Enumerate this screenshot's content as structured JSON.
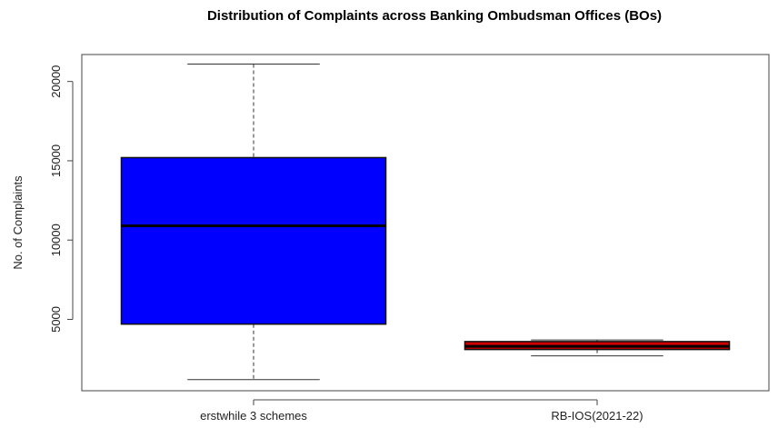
{
  "chart_data": {
    "type": "boxplot",
    "title": "Distribution of Complaints across Banking Ombudsman Offices (BOs)",
    "xlabel": "",
    "ylabel": "No. of Complaints",
    "ylim": [
      500,
      21700
    ],
    "yticks": [
      5000,
      10000,
      15000,
      20000
    ],
    "grid": false,
    "categories": [
      "erstwhile 3 schemes",
      "RB-IOS(2021-22)"
    ],
    "boxes": [
      {
        "category": "erstwhile 3 schemes",
        "color": "#0000ff",
        "min": 1200,
        "q1": 4700,
        "median": 10900,
        "q3": 15200,
        "max": 21100
      },
      {
        "category": "RB-IOS(2021-22)",
        "color": "#cc0000",
        "min": 2700,
        "q1": 3100,
        "median": 3300,
        "q3": 3600,
        "max": 3700
      }
    ]
  }
}
